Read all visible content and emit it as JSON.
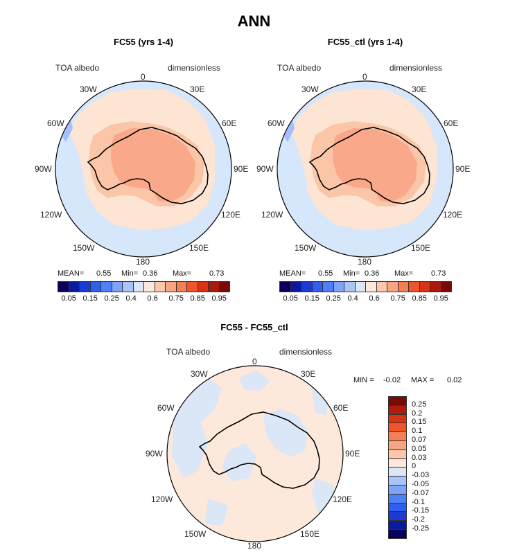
{
  "title": "ANN",
  "panels": [
    {
      "title": "FC55 (yrs 1-4)",
      "var_label": "TOA albedo",
      "units_label": "dimensionless",
      "stats": {
        "mean_label": "MEAN=",
        "mean": "0.55",
        "min_label": "Min=",
        "min": "0.36",
        "max_label": "Max=",
        "max": "0.73"
      }
    },
    {
      "title": "FC55_ctl (yrs 1-4)",
      "var_label": "TOA albedo",
      "units_label": "dimensionless",
      "stats": {
        "mean_label": "MEAN=",
        "mean": "0.55",
        "min_label": "Min=",
        "min": "0.36",
        "max_label": "Max=",
        "max": "0.73"
      }
    },
    {
      "title": "FC55 - FC55_ctl",
      "var_label": "TOA albedo",
      "units_label": "dimensionless",
      "stats": {
        "min_label": "MIN =",
        "min": "-0.02",
        "max_label": "MAX =",
        "max": "0.02"
      }
    }
  ],
  "longitude_labels": {
    "n0": "0",
    "w30": "30W",
    "e30": "30E",
    "w60": "60W",
    "e60": "60E",
    "w90": "90W",
    "e90": "90E",
    "w120": "120W",
    "e120": "120E",
    "w150": "150W",
    "e150": "150E",
    "s180": "180"
  },
  "abs_colorbar": {
    "colors": [
      "#08005a",
      "#0a1a9e",
      "#1a3ad4",
      "#2f5ff0",
      "#4f7ff5",
      "#7fa3f8",
      "#aac4f8",
      "#dbe7f6",
      "#fde8dc",
      "#fbc8ad",
      "#f8a584",
      "#f67e55",
      "#ee5528",
      "#d93214",
      "#a81a0c",
      "#7a0a08"
    ],
    "labels": [
      "0.05",
      "0.15",
      "0.25",
      "0.4",
      "0.6",
      "0.75",
      "0.85",
      "0.95"
    ]
  },
  "diff_colorbar": {
    "colors": [
      "#7a0a08",
      "#b01c0c",
      "#d93214",
      "#ee5528",
      "#f67e55",
      "#f8a584",
      "#fbc8ad",
      "#fde8dc",
      "#dbe7f6",
      "#aac4f8",
      "#7fa3f8",
      "#4f7ff5",
      "#2f5ff0",
      "#1a3ad4",
      "#0a1a9e",
      "#08005a"
    ],
    "labels": [
      "0.25",
      "0.2",
      "0.15",
      "0.1",
      "0.07",
      "0.05",
      "0.03",
      "0",
      "-0.03",
      "-0.05",
      "-0.07",
      "-0.1",
      "-0.15",
      "-0.2",
      "-0.25"
    ]
  }
}
